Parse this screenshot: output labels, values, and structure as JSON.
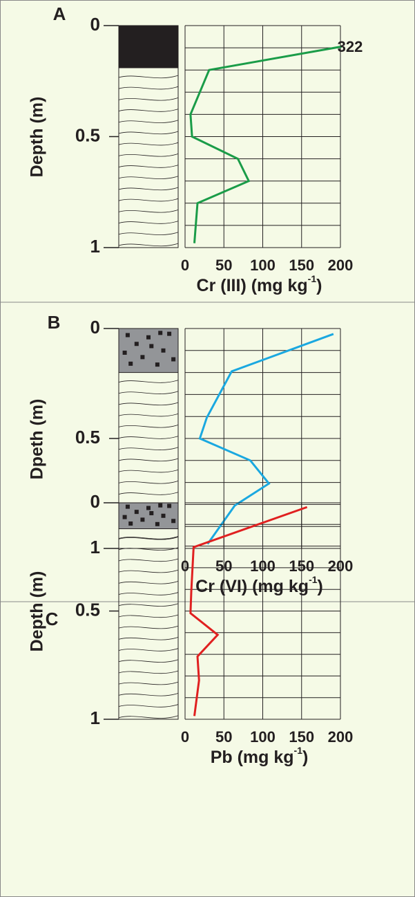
{
  "chart_data": [
    {
      "type": "line",
      "panel_label": "A",
      "y_label": "Depth (m)",
      "x_label": "Cr (III) (mg kg",
      "x_label_sup": "-1",
      "x_label_end": ")",
      "y": [
        0.02,
        0.2,
        0.4,
        0.5,
        0.6,
        0.7,
        0.8,
        0.98
      ],
      "values": [
        322,
        31,
        7,
        9,
        68,
        82,
        16,
        12
      ],
      "value_labels": [
        "322",
        null,
        null,
        null,
        null,
        null,
        null,
        null
      ],
      "color": "#1a9c48",
      "xlim": [
        0,
        200
      ],
      "xticks": [
        0,
        50,
        100,
        150,
        200
      ],
      "ylim": [
        0,
        1
      ],
      "yticks": [
        0,
        0.5,
        1
      ],
      "ygrid": [
        0,
        0.1,
        0.2,
        0.3,
        0.4,
        0.5,
        0.6,
        0.7,
        0.8,
        0.9,
        1
      ],
      "grid": true
    },
    {
      "type": "line",
      "panel_label": "B",
      "y_label": "Dpeth (m)",
      "x_label": "Cr (VI) (mg kg",
      "x_label_sup": "-1",
      "x_label_end": ")",
      "y": [
        0.025,
        0.195,
        0.405,
        0.5,
        0.6,
        0.705,
        0.805,
        0.98
      ],
      "values": [
        191,
        60,
        28,
        19,
        84,
        108,
        64,
        29
      ],
      "color": "#1aa8e0",
      "xlim": [
        0,
        200
      ],
      "xticks": [
        0,
        50,
        100,
        150,
        200
      ],
      "ylim": [
        0,
        1
      ],
      "yticks": [
        0,
        0.5,
        1
      ],
      "ygrid": [
        0,
        0.1,
        0.2,
        0.3,
        0.4,
        0.5,
        0.6,
        0.7,
        0.8,
        0.9,
        1
      ],
      "grid": true
    },
    {
      "type": "line",
      "panel_label": "C",
      "y_label": "Depth (m)",
      "x_label": "Pb (mg kg",
      "x_label_sup": "-1",
      "x_label_end": ")",
      "y": [
        0.02,
        0.205,
        0.41,
        0.51,
        0.61,
        0.71,
        0.82,
        0.985
      ],
      "values": [
        157,
        11,
        8,
        7,
        42,
        16,
        18,
        12
      ],
      "color": "#e02020",
      "xlim": [
        0,
        200
      ],
      "xticks": [
        0,
        50,
        100,
        150,
        200
      ],
      "ylim": [
        0,
        1
      ],
      "yticks": [
        0,
        0.5,
        1
      ],
      "ygrid": [
        0,
        0.1,
        0.2,
        0.3,
        0.4,
        0.5,
        0.6,
        0.7,
        0.8,
        0.9,
        1
      ],
      "grid": true
    }
  ]
}
